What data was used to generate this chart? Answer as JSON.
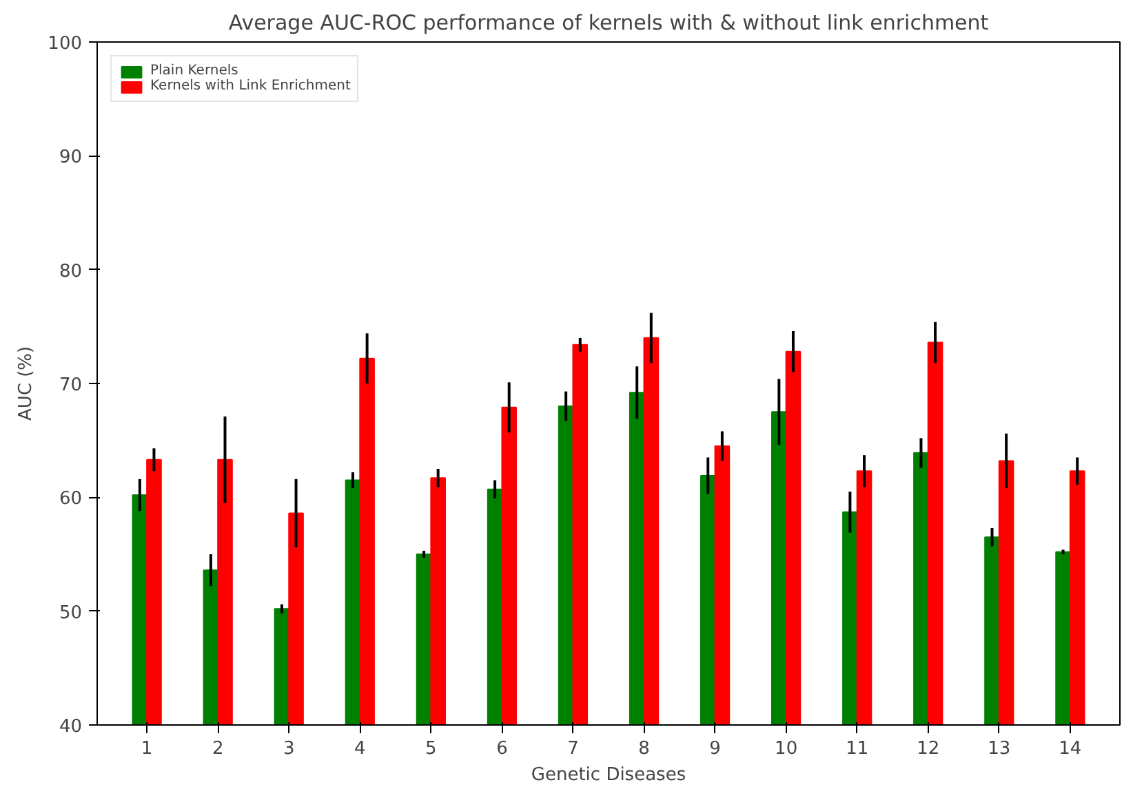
{
  "chart_data": {
    "type": "bar",
    "title": "Average AUC-ROC performance of kernels with & without link enrichment",
    "xlabel": "Genetic Diseases",
    "ylabel": "AUC (%)",
    "x": [
      1,
      2,
      3,
      4,
      5,
      6,
      7,
      8,
      9,
      10,
      11,
      12,
      13,
      14
    ],
    "xlim": [
      0.3,
      14.7
    ],
    "xticks": [
      1,
      2,
      3,
      4,
      5,
      6,
      7,
      8,
      9,
      10,
      11,
      12,
      13,
      14
    ],
    "ylim": [
      40,
      100
    ],
    "yticks": [
      40,
      50,
      60,
      70,
      80,
      90,
      100
    ],
    "series": [
      {
        "name": "Plain Kernels",
        "color": "#008000",
        "values": [
          60.2,
          53.6,
          50.2,
          61.5,
          55.0,
          60.7,
          68.0,
          69.2,
          61.9,
          67.5,
          58.7,
          63.9,
          56.5,
          55.2
        ],
        "errors": [
          1.4,
          1.4,
          0.4,
          0.7,
          0.3,
          0.8,
          1.3,
          2.3,
          1.6,
          2.9,
          1.8,
          1.3,
          0.8,
          0.2
        ]
      },
      {
        "name": "Kernels with Link Enrichment",
        "color": "#ff0000",
        "values": [
          63.3,
          63.3,
          58.6,
          72.2,
          61.7,
          67.9,
          73.4,
          74.0,
          64.5,
          72.8,
          62.3,
          73.6,
          63.2,
          62.3
        ],
        "errors": [
          1.0,
          3.8,
          3.0,
          2.2,
          0.8,
          2.2,
          0.6,
          2.2,
          1.3,
          1.8,
          1.4,
          1.8,
          2.4,
          1.2
        ]
      }
    ],
    "grid": false,
    "legend": "top left"
  }
}
